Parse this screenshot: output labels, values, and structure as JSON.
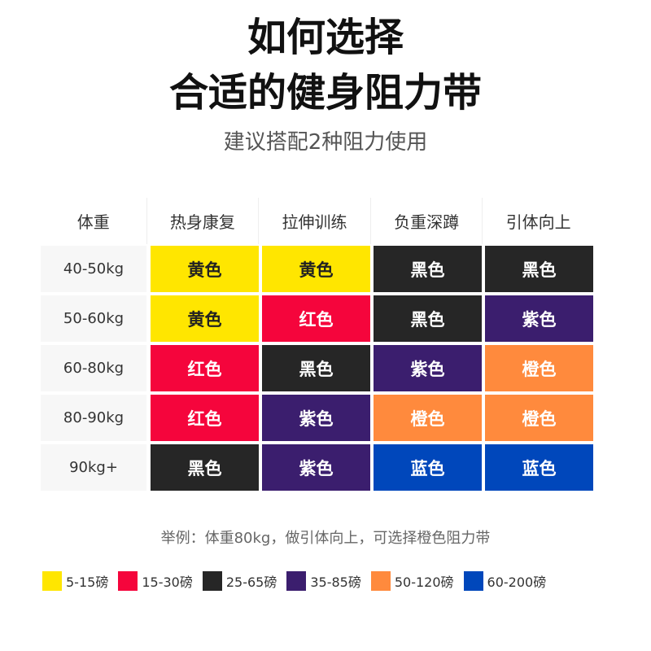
{
  "title_line1": "如何选择",
  "title_line2": "合适的健身阻力带",
  "subtitle": "建议搭配2种阻力使用",
  "colors": {
    "yellow": "#FFE600",
    "red": "#F5053C",
    "black": "#262626",
    "purple": "#3B1E6E",
    "orange": "#FF8A3D",
    "blue": "#0047BB"
  },
  "table": {
    "headers": [
      "体重",
      "热身康复",
      "拉伸训练",
      "负重深蹲",
      "引体向上"
    ],
    "rows": [
      {
        "weight": "40-50kg",
        "cells": [
          {
            "label": "黄色",
            "color": "yellow"
          },
          {
            "label": "黄色",
            "color": "yellow"
          },
          {
            "label": "黑色",
            "color": "black"
          },
          {
            "label": "黑色",
            "color": "black"
          }
        ]
      },
      {
        "weight": "50-60kg",
        "cells": [
          {
            "label": "黄色",
            "color": "yellow"
          },
          {
            "label": "红色",
            "color": "red"
          },
          {
            "label": "黑色",
            "color": "black"
          },
          {
            "label": "紫色",
            "color": "purple"
          }
        ]
      },
      {
        "weight": "60-80kg",
        "cells": [
          {
            "label": "红色",
            "color": "red"
          },
          {
            "label": "黑色",
            "color": "black"
          },
          {
            "label": "紫色",
            "color": "purple"
          },
          {
            "label": "橙色",
            "color": "orange"
          }
        ]
      },
      {
        "weight": "80-90kg",
        "cells": [
          {
            "label": "红色",
            "color": "red"
          },
          {
            "label": "紫色",
            "color": "purple"
          },
          {
            "label": "橙色",
            "color": "orange"
          },
          {
            "label": "橙色",
            "color": "orange"
          }
        ]
      },
      {
        "weight": "90kg+",
        "cells": [
          {
            "label": "黑色",
            "color": "black"
          },
          {
            "label": "紫色",
            "color": "purple"
          },
          {
            "label": "蓝色",
            "color": "blue"
          },
          {
            "label": "蓝色",
            "color": "blue"
          }
        ]
      }
    ]
  },
  "example": "举例：体重80kg，做引体向上，可选择橙色阻力带",
  "legend": [
    {
      "color": "yellow",
      "label": "5-15磅"
    },
    {
      "color": "red",
      "label": "15-30磅"
    },
    {
      "color": "black",
      "label": "25-65磅"
    },
    {
      "color": "purple",
      "label": "35-85磅"
    },
    {
      "color": "orange",
      "label": "50-120磅"
    },
    {
      "color": "blue",
      "label": "60-200磅"
    }
  ]
}
